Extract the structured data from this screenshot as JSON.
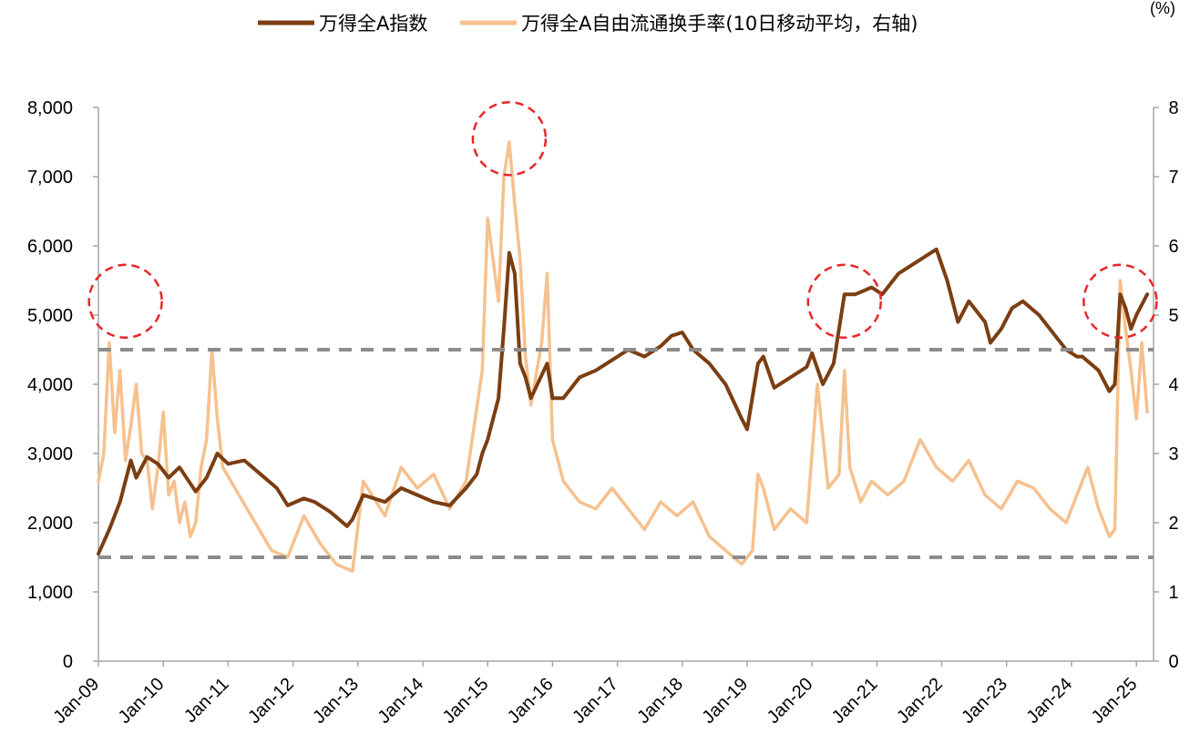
{
  "chart_data": {
    "type": "line",
    "title": "",
    "unit_label": "(%)",
    "x_ticks": [
      "Jan-09",
      "Jan-10",
      "Jan-11",
      "Jan-12",
      "Jan-13",
      "Jan-14",
      "Jan-15",
      "Jan-16",
      "Jan-17",
      "Jan-18",
      "Jan-19",
      "Jan-20",
      "Jan-21",
      "Jan-22",
      "Jan-23",
      "Jan-24",
      "Jan-25"
    ],
    "y_left": {
      "ylim": [
        0,
        8000
      ],
      "ticks": [
        "0",
        "1,000",
        "2,000",
        "3,000",
        "4,000",
        "5,000",
        "6,000",
        "7,000",
        "8,000"
      ]
    },
    "y_right": {
      "ylim": [
        0,
        8
      ],
      "ticks": [
        "0",
        "1",
        "2",
        "3",
        "4",
        "5",
        "6",
        "7",
        "8"
      ]
    },
    "reference_lines": [
      {
        "axis": "right",
        "value": 4.5,
        "style": "dashed",
        "color": "#8c8c8c"
      },
      {
        "axis": "right",
        "value": 1.5,
        "style": "dashed",
        "color": "#8c8c8c"
      }
    ],
    "highlight_circles": [
      {
        "x": "2009-06",
        "y_right": 5.2
      },
      {
        "x": "2015-05",
        "y_right": 7.55
      },
      {
        "x": "2020-07",
        "y_right": 5.2
      },
      {
        "x": "2024-10",
        "y_right": 5.2
      }
    ],
    "series": [
      {
        "name": "万得全A自由流通换手率(10日移动平均，右轴)",
        "axis": "right",
        "color": "#f6c18e",
        "x": [
          "2009-01",
          "2009-02",
          "2009-03",
          "2009-04",
          "2009-05",
          "2009-06",
          "2009-07",
          "2009-08",
          "2009-09",
          "2009-10",
          "2009-11",
          "2009-12",
          "2010-01",
          "2010-02",
          "2010-03",
          "2010-04",
          "2010-05",
          "2010-06",
          "2010-07",
          "2010-08",
          "2010-09",
          "2010-10",
          "2010-11",
          "2010-12",
          "2011-03",
          "2011-06",
          "2011-09",
          "2011-12",
          "2012-03",
          "2012-06",
          "2012-09",
          "2012-12",
          "2013-02",
          "2013-06",
          "2013-09",
          "2013-12",
          "2014-03",
          "2014-06",
          "2014-09",
          "2014-12",
          "2015-01",
          "2015-03",
          "2015-04",
          "2015-05",
          "2015-06",
          "2015-07",
          "2015-08",
          "2015-09",
          "2015-11",
          "2015-12",
          "2016-01",
          "2016-03",
          "2016-06",
          "2016-09",
          "2016-12",
          "2017-03",
          "2017-06",
          "2017-09",
          "2017-12",
          "2018-03",
          "2018-06",
          "2018-09",
          "2018-12",
          "2019-02",
          "2019-03",
          "2019-04",
          "2019-06",
          "2019-09",
          "2019-12",
          "2020-02",
          "2020-04",
          "2020-06",
          "2020-07",
          "2020-08",
          "2020-10",
          "2020-12",
          "2021-03",
          "2021-06",
          "2021-09",
          "2021-12",
          "2022-03",
          "2022-06",
          "2022-09",
          "2022-12",
          "2023-03",
          "2023-06",
          "2023-09",
          "2023-12",
          "2024-02",
          "2024-04",
          "2024-06",
          "2024-08",
          "2024-09",
          "2024-10",
          "2024-11",
          "2024-12",
          "2025-01",
          "2025-02",
          "2025-03"
        ],
        "values": [
          2.6,
          3.0,
          4.6,
          3.3,
          4.2,
          2.9,
          3.4,
          4.0,
          3.0,
          2.9,
          2.2,
          2.8,
          3.6,
          2.4,
          2.6,
          2.0,
          2.3,
          1.8,
          2.0,
          2.8,
          3.2,
          4.5,
          3.5,
          2.8,
          2.4,
          2.0,
          1.6,
          1.5,
          2.1,
          1.7,
          1.4,
          1.3,
          2.6,
          2.1,
          2.8,
          2.5,
          2.7,
          2.2,
          2.6,
          4.2,
          6.4,
          5.2,
          7.0,
          7.5,
          6.6,
          5.8,
          4.4,
          3.7,
          4.6,
          5.6,
          3.2,
          2.6,
          2.3,
          2.2,
          2.5,
          2.2,
          1.9,
          2.3,
          2.1,
          2.3,
          1.8,
          1.6,
          1.4,
          1.6,
          2.7,
          2.5,
          1.9,
          2.2,
          2.0,
          4.0,
          2.5,
          2.7,
          4.2,
          2.8,
          2.3,
          2.6,
          2.4,
          2.6,
          3.2,
          2.8,
          2.6,
          2.9,
          2.4,
          2.2,
          2.6,
          2.5,
          2.2,
          2.0,
          2.4,
          2.8,
          2.2,
          1.8,
          1.9,
          5.5,
          4.8,
          4.2,
          3.5,
          4.6,
          3.6
        ]
      },
      {
        "name": "万得全A指数",
        "axis": "left",
        "color": "#7b3e12",
        "x": [
          "2009-01",
          "2009-03",
          "2009-05",
          "2009-07",
          "2009-08",
          "2009-10",
          "2009-12",
          "2010-02",
          "2010-04",
          "2010-07",
          "2010-09",
          "2010-11",
          "2011-01",
          "2011-04",
          "2011-07",
          "2011-10",
          "2011-12",
          "2012-03",
          "2012-05",
          "2012-08",
          "2012-11",
          "2012-12",
          "2013-02",
          "2013-06",
          "2013-09",
          "2013-12",
          "2014-03",
          "2014-06",
          "2014-09",
          "2014-11",
          "2014-12",
          "2015-01",
          "2015-03",
          "2015-04",
          "2015-05",
          "2015-06",
          "2015-07",
          "2015-08",
          "2015-09",
          "2015-12",
          "2016-01",
          "2016-03",
          "2016-06",
          "2016-09",
          "2016-12",
          "2017-03",
          "2017-06",
          "2017-09",
          "2017-11",
          "2018-01",
          "2018-03",
          "2018-06",
          "2018-09",
          "2018-12",
          "2019-01",
          "2019-03",
          "2019-04",
          "2019-06",
          "2019-09",
          "2019-12",
          "2020-01",
          "2020-03",
          "2020-05",
          "2020-07",
          "2020-09",
          "2020-12",
          "2021-02",
          "2021-05",
          "2021-09",
          "2021-12",
          "2022-02",
          "2022-04",
          "2022-06",
          "2022-09",
          "2022-10",
          "2022-12",
          "2023-02",
          "2023-04",
          "2023-07",
          "2023-10",
          "2023-12",
          "2024-02",
          "2024-03",
          "2024-06",
          "2024-08",
          "2024-09",
          "2024-10",
          "2024-11",
          "2024-12",
          "2025-01",
          "2025-03"
        ],
        "values": [
          1550,
          1900,
          2300,
          2900,
          2650,
          2950,
          2850,
          2650,
          2800,
          2450,
          2650,
          3000,
          2850,
          2900,
          2700,
          2500,
          2250,
          2350,
          2300,
          2150,
          1950,
          2050,
          2400,
          2300,
          2500,
          2400,
          2300,
          2250,
          2500,
          2700,
          3000,
          3200,
          3800,
          4800,
          5900,
          5600,
          4300,
          4100,
          3800,
          4300,
          3800,
          3800,
          4100,
          4200,
          4350,
          4500,
          4400,
          4550,
          4700,
          4750,
          4500,
          4300,
          4000,
          3500,
          3350,
          4300,
          4400,
          3950,
          4100,
          4250,
          4450,
          4000,
          4300,
          5300,
          5300,
          5400,
          5300,
          5600,
          5800,
          5950,
          5500,
          4900,
          5200,
          4900,
          4600,
          4800,
          5100,
          5200,
          5000,
          4700,
          4500,
          4400,
          4400,
          4200,
          3900,
          4000,
          5300,
          5100,
          4800,
          5000,
          5300
        ]
      }
    ]
  }
}
